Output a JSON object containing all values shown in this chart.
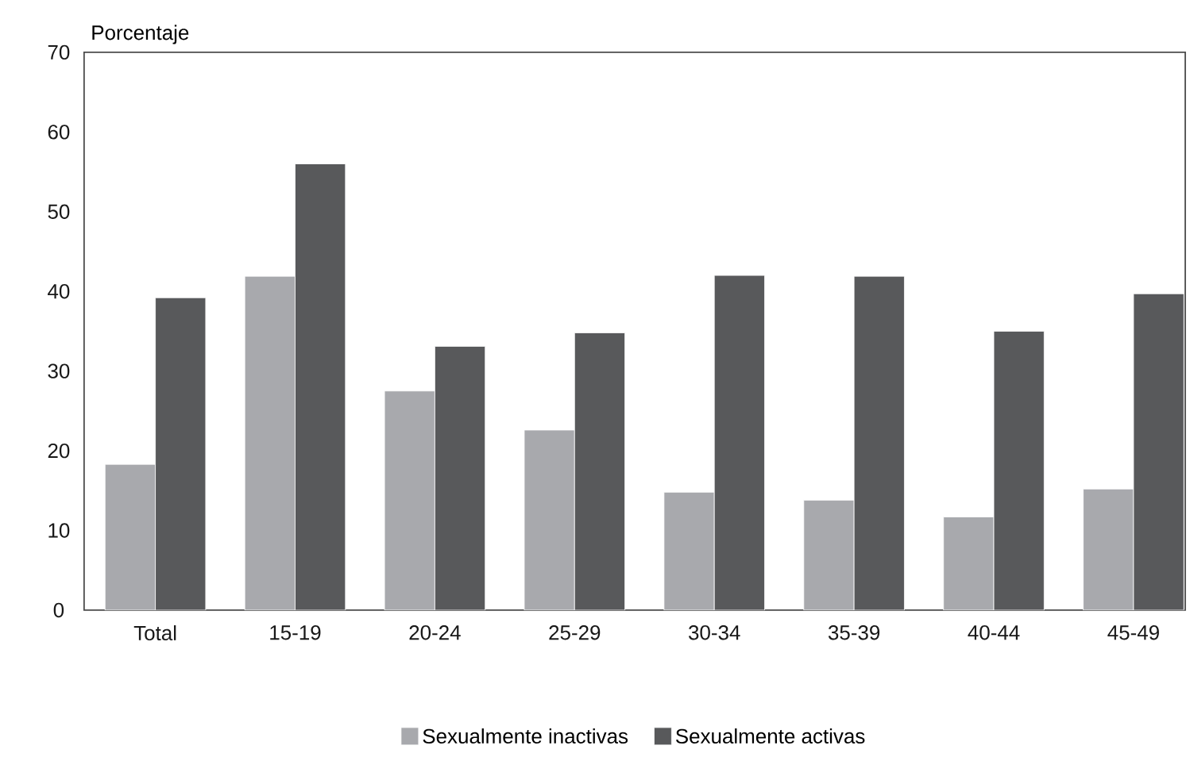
{
  "chart_data": {
    "type": "bar",
    "ylabel": "Porcentaje",
    "categories": [
      "Total",
      "15-19",
      "20-24",
      "25-29",
      "30-34",
      "35-39",
      "40-44",
      "45-49"
    ],
    "series": [
      {
        "name": "Sexualmente inactivas",
        "color": "#a8a9ad",
        "values": [
          18.3,
          41.9,
          27.5,
          22.6,
          14.8,
          13.8,
          11.7,
          15.2
        ]
      },
      {
        "name": "Sexualmente activas",
        "color": "#58595b",
        "values": [
          39.2,
          56.0,
          33.1,
          34.8,
          42.0,
          41.9,
          35.0,
          39.7
        ]
      }
    ],
    "ylim": [
      0,
      70
    ],
    "yticks": [
      0,
      10,
      20,
      30,
      40,
      50,
      60,
      70
    ],
    "legend": "bottom",
    "grid": false
  }
}
